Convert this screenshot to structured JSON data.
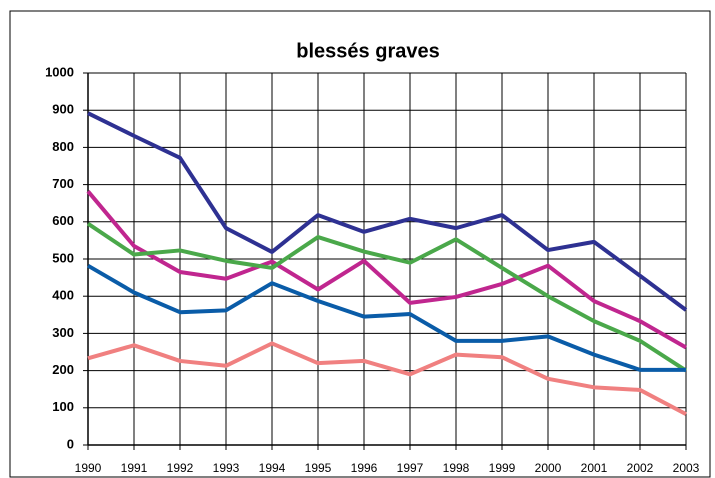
{
  "chart_data": {
    "type": "line",
    "title": "blessés graves",
    "categories": [
      "1990",
      "1991",
      "1992",
      "1993",
      "1994",
      "1995",
      "1996",
      "1997",
      "1998",
      "1999",
      "2000",
      "2001",
      "2002",
      "2003"
    ],
    "series": [
      {
        "color": "#2e3192",
        "values": [
          892,
          831,
          772,
          583,
          519,
          618,
          573,
          608,
          583,
          618,
          524,
          546,
          455,
          363
        ]
      },
      {
        "color": "#c0268f",
        "values": [
          682,
          535,
          465,
          447,
          493,
          418,
          495,
          382,
          398,
          433,
          482,
          387,
          333,
          262
        ]
      },
      {
        "color": "#4aa84a",
        "values": [
          595,
          512,
          523,
          495,
          476,
          559,
          520,
          490,
          553,
          476,
          400,
          333,
          280,
          200
        ]
      },
      {
        "color": "#0a5ca8",
        "values": [
          482,
          410,
          357,
          362,
          435,
          387,
          345,
          352,
          280,
          280,
          292,
          243,
          202,
          202
        ]
      },
      {
        "color": "#f08080",
        "values": [
          233,
          268,
          226,
          213,
          273,
          220,
          226,
          190,
          243,
          236,
          178,
          155,
          148,
          83
        ]
      }
    ],
    "ylim": [
      0,
      1000
    ],
    "yticks": [
      0,
      100,
      200,
      300,
      400,
      500,
      600,
      700,
      800,
      900,
      1000
    ],
    "grid": true
  }
}
